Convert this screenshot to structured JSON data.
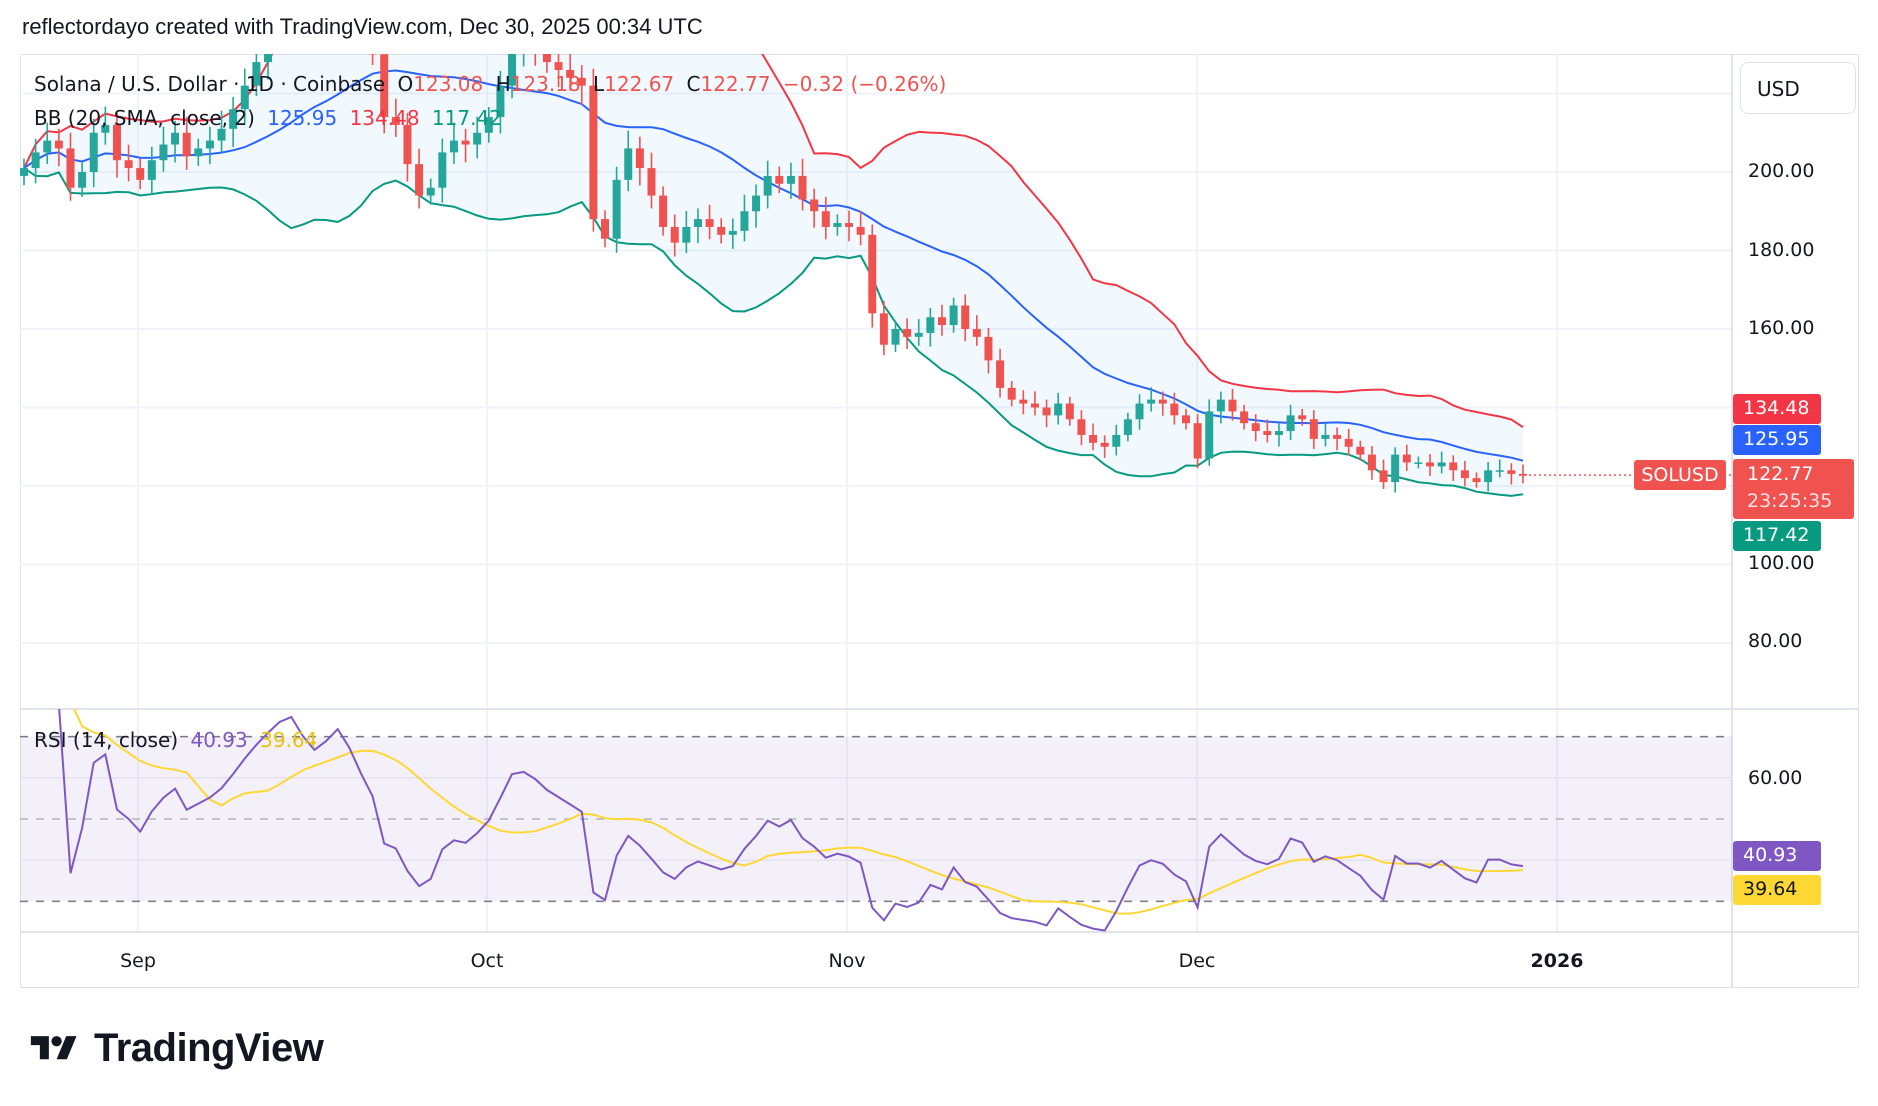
{
  "header": "reflectordayo created with TradingView.com, Dec 30, 2025 00:34 UTC",
  "currency_button": "USD",
  "legend": {
    "symbol": "Solana / U.S. Dollar · 1D · Coinbase",
    "o_label": "O",
    "o": "123.08",
    "h_label": "H",
    "h": "123.18",
    "l_label": "L",
    "l": "122.67",
    "c_label": "C",
    "c": "122.77",
    "change": "−0.32 (−0.26%)",
    "bb_label": "BB (20, SMA, close, 2)",
    "bb_basis": "125.95",
    "bb_upper": "134.48",
    "bb_lower": "117.42",
    "rsi_label": "RSI (14, close)",
    "rsi_value": "40.93",
    "rsi_ma": "39.64"
  },
  "badges": {
    "upper": "134.48",
    "basis": "125.95",
    "price": "122.77",
    "countdown": "23:25:35",
    "lower": "117.42",
    "symbol": "SOLUSD",
    "rsi": "40.93",
    "rsi_ma": "39.64"
  },
  "colors": {
    "up": "#26a69a",
    "down": "#ef5350",
    "bb_basis": "#2962ff",
    "bb_upper": "#f23645",
    "bb_lower": "#089981",
    "rsi": "#7e57c2",
    "rsi_ma": "#fdd835",
    "price_badge": "#f0524f"
  },
  "logo": "TradingView",
  "chart_data": [
    {
      "type": "candlestick",
      "title": "Solana / U.S. Dollar · 1D · Coinbase",
      "x_start": "2025-08-22",
      "x_end": "2025-12-29",
      "ylim": [
        63,
        230
      ],
      "y_ticks": [
        "80.00",
        "100.00",
        "160.00",
        "180.00",
        "200.00"
      ],
      "x_ticks": [
        "Sep",
        "Oct",
        "Nov",
        "Dec",
        "2026"
      ],
      "grid": true,
      "close": [
        201,
        205,
        208,
        206,
        196,
        200,
        210,
        212,
        203,
        201,
        198,
        203,
        207,
        210,
        204,
        206,
        208,
        211,
        216,
        222,
        228,
        234,
        240,
        243,
        239,
        236,
        240,
        246,
        242,
        236,
        230,
        214,
        212,
        202,
        194,
        196,
        205,
        208,
        207,
        210,
        214,
        222,
        232,
        233,
        231,
        228,
        226,
        224,
        222,
        188,
        183,
        198,
        206,
        201,
        194,
        186,
        182,
        186,
        188,
        186,
        184,
        185,
        190,
        194,
        199,
        197,
        199,
        193,
        190,
        186,
        187,
        186,
        184,
        164,
        156,
        160,
        158,
        159,
        163,
        161,
        166,
        160,
        158,
        152,
        145,
        142,
        141,
        140,
        138,
        141,
        137,
        133,
        131,
        130,
        133,
        137,
        141,
        142,
        141,
        138,
        136,
        127,
        139,
        142,
        139,
        136,
        134,
        133,
        134,
        138,
        137,
        132,
        133,
        132,
        130,
        128,
        124,
        121,
        128,
        126,
        126,
        125,
        126,
        124,
        122,
        121,
        124,
        124,
        123.08,
        122.77
      ],
      "overlays": [
        "BB (20, SMA, close, 2)"
      ]
    },
    {
      "type": "line",
      "title": "RSI (14, close)",
      "ylim": [
        22.6,
        76.7
      ],
      "y_ticks": [
        "60.00"
      ],
      "bands": [
        30,
        50,
        70
      ],
      "series": [
        {
          "name": "RSI"
        },
        {
          "name": "RSI-based MA"
        }
      ]
    }
  ]
}
